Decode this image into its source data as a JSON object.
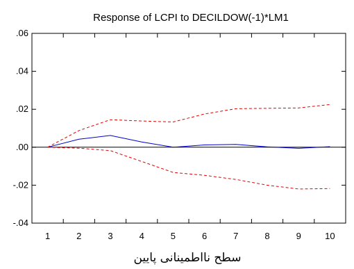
{
  "chart_data": {
    "type": "line",
    "title": "Response of LCPI to DECILDOW(-1)*LM1",
    "xlabel": "سطح نااطمینانی پایین",
    "ylabel": "",
    "x": [
      1,
      2,
      3,
      4,
      5,
      6,
      7,
      8,
      9,
      10
    ],
    "xlim": [
      0.5,
      10.5
    ],
    "ylim": [
      -0.04,
      0.06
    ],
    "yticks": [
      0.06,
      0.04,
      0.02,
      0.0,
      -0.02,
      -0.04
    ],
    "ytick_labels": [
      ".06",
      ".04",
      ".02",
      ".00",
      "-.02",
      "-.04"
    ],
    "xtick_labels": [
      "1",
      "2",
      "3",
      "4",
      "5",
      "6",
      "7",
      "8",
      "9",
      "10"
    ],
    "zero_line": true,
    "grid": false,
    "series": [
      {
        "role": "response",
        "style": "solid",
        "color": "#0000cc",
        "values": [
          0.0,
          0.0042,
          0.0062,
          0.0028,
          0.0,
          0.0012,
          0.0015,
          0.0002,
          -0.0006,
          0.0003
        ]
      },
      {
        "role": "upper-band",
        "style": "dashed",
        "color": "#e00000",
        "values": [
          0.0,
          0.0088,
          0.0145,
          0.0138,
          0.0133,
          0.0175,
          0.0203,
          0.0205,
          0.0207,
          0.0225
        ]
      },
      {
        "role": "lower-band",
        "style": "dashed",
        "color": "#e00000",
        "values": [
          0.0,
          -0.0005,
          -0.0018,
          -0.0075,
          -0.0133,
          -0.0148,
          -0.017,
          -0.02,
          -0.022,
          -0.0218
        ]
      }
    ]
  }
}
